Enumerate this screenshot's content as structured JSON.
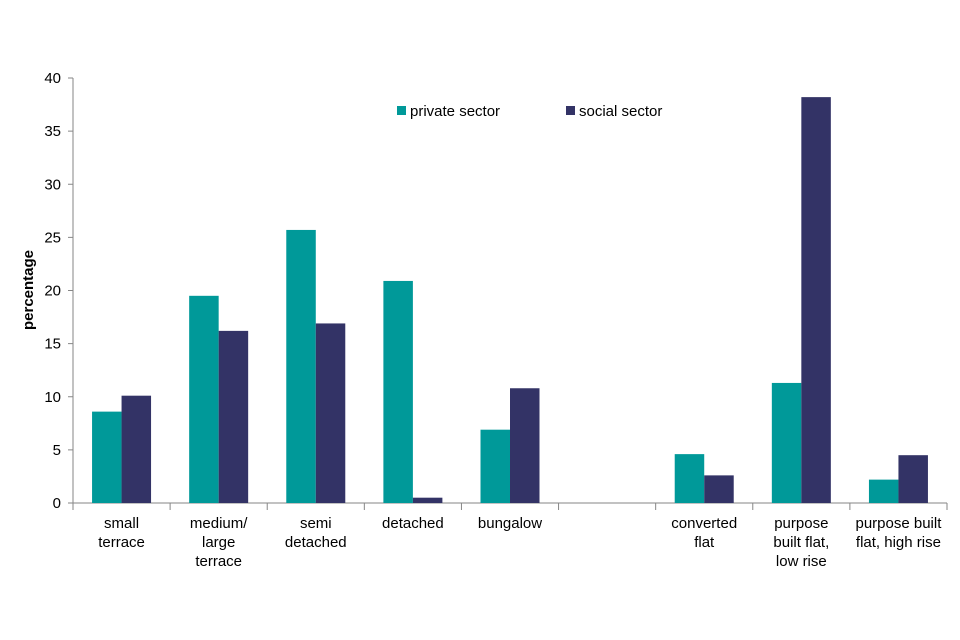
{
  "chart_data": {
    "type": "bar",
    "title": "",
    "xlabel": "",
    "ylabel": "percentage",
    "ylim": [
      0,
      40
    ],
    "yticks": [
      0,
      5,
      10,
      15,
      20,
      25,
      30,
      35,
      40
    ],
    "grid": false,
    "legend_position": "top-center",
    "categories": [
      [
        "small",
        "terrace"
      ],
      [
        "medium/",
        "large",
        "terrace"
      ],
      [
        "semi",
        "detached"
      ],
      [
        "detached"
      ],
      [
        "bungalow"
      ],
      [],
      [
        "converted",
        "flat"
      ],
      [
        "purpose",
        "built flat,",
        "low rise"
      ],
      [
        "purpose built",
        "flat, high rise"
      ]
    ],
    "series": [
      {
        "name": "private sector",
        "color": "#009999",
        "values": [
          8.6,
          19.5,
          25.7,
          20.9,
          6.9,
          null,
          4.6,
          11.3,
          2.2
        ]
      },
      {
        "name": "social sector",
        "color": "#333366",
        "values": [
          10.1,
          16.2,
          16.9,
          0.5,
          10.8,
          null,
          2.6,
          38.2,
          4.5
        ]
      }
    ]
  }
}
